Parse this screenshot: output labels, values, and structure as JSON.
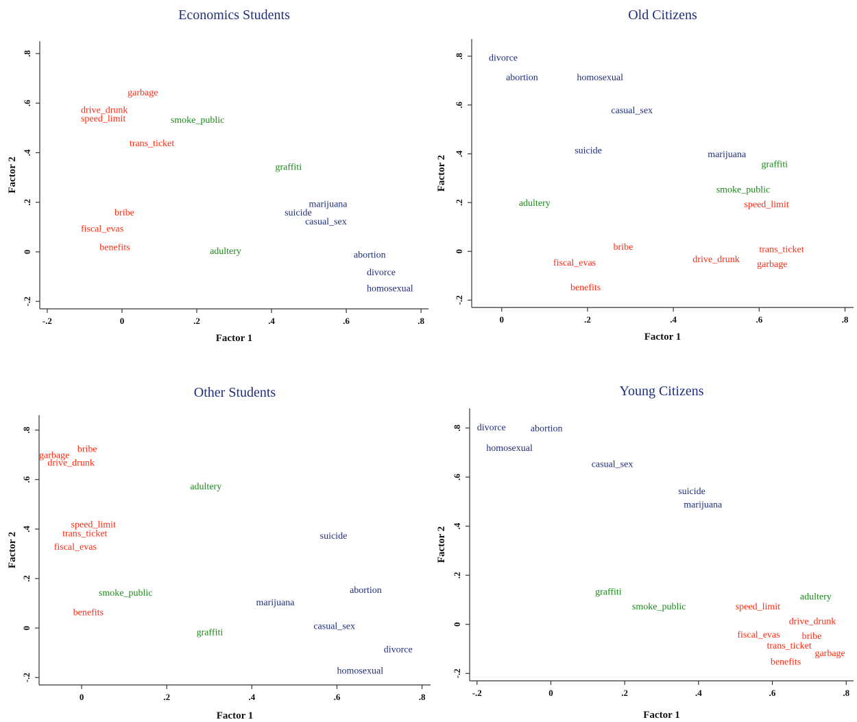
{
  "colors": {
    "red": "#ff2a12",
    "green": "#1a8a1a",
    "blue": "#1f2f7a"
  },
  "chart_data": [
    {
      "type": "scatter",
      "title": "Economics Students",
      "xlabel": "Factor 1",
      "ylabel": "Factor 2",
      "xlim": [
        -0.22,
        0.82
      ],
      "ylim": [
        -0.23,
        0.85
      ],
      "xticks": [
        -0.2,
        0,
        0.2,
        0.4,
        0.6,
        0.8
      ],
      "yticks": [
        -0.2,
        0,
        0.2,
        0.4,
        0.6,
        0.8
      ],
      "xtick_labels": [
        "-.2",
        "0",
        ".2",
        ".4",
        ".6",
        ".8"
      ],
      "ytick_labels": [
        "-.2",
        "0",
        ".2",
        ".4",
        ".6",
        ".8"
      ],
      "points": [
        {
          "label": "garbage",
          "x": 0.015,
          "y": 0.645,
          "color": "red"
        },
        {
          "label": "drive_drunk",
          "x": -0.11,
          "y": 0.575,
          "color": "red"
        },
        {
          "label": "speed_limit",
          "x": -0.11,
          "y": 0.54,
          "color": "red"
        },
        {
          "label": "smoke_public",
          "x": 0.13,
          "y": 0.535,
          "color": "green"
        },
        {
          "label": "trans_ticket",
          "x": 0.02,
          "y": 0.44,
          "color": "red"
        },
        {
          "label": "graffiti",
          "x": 0.41,
          "y": 0.345,
          "color": "green"
        },
        {
          "label": "marijuana",
          "x": 0.5,
          "y": 0.195,
          "color": "blue"
        },
        {
          "label": "bribe",
          "x": -0.02,
          "y": 0.16,
          "color": "red"
        },
        {
          "label": "suicide",
          "x": 0.435,
          "y": 0.16,
          "color": "blue"
        },
        {
          "label": "casual_sex",
          "x": 0.49,
          "y": 0.125,
          "color": "blue"
        },
        {
          "label": "fiscal_evas",
          "x": -0.11,
          "y": 0.095,
          "color": "red"
        },
        {
          "label": "benefits",
          "x": -0.06,
          "y": 0.02,
          "color": "red"
        },
        {
          "label": "adultery",
          "x": 0.235,
          "y": 0.005,
          "color": "green"
        },
        {
          "label": "abortion",
          "x": 0.62,
          "y": -0.01,
          "color": "blue"
        },
        {
          "label": "divorce",
          "x": 0.655,
          "y": -0.08,
          "color": "blue"
        },
        {
          "label": "homosexual",
          "x": 0.655,
          "y": -0.145,
          "color": "blue"
        }
      ]
    },
    {
      "type": "scatter",
      "title": "Old Citizens",
      "xlabel": "Factor 1",
      "ylabel": "Factor 2",
      "xlim": [
        -0.07,
        0.82
      ],
      "ylim": [
        -0.23,
        0.87
      ],
      "xticks": [
        0,
        0.2,
        0.4,
        0.6,
        0.8
      ],
      "yticks": [
        -0.2,
        0,
        0.2,
        0.4,
        0.6,
        0.8
      ],
      "xtick_labels": [
        "0",
        ".2",
        ".4",
        ".6",
        ".8"
      ],
      "ytick_labels": [
        "-.2",
        "0",
        ".2",
        ".4",
        ".6",
        ".8"
      ],
      "points": [
        {
          "label": "divorce",
          "x": -0.03,
          "y": 0.795,
          "color": "blue"
        },
        {
          "label": "abortion",
          "x": 0.01,
          "y": 0.715,
          "color": "blue"
        },
        {
          "label": "homosexual",
          "x": 0.175,
          "y": 0.715,
          "color": "blue"
        },
        {
          "label": "casual_sex",
          "x": 0.255,
          "y": 0.58,
          "color": "blue"
        },
        {
          "label": "suicide",
          "x": 0.17,
          "y": 0.415,
          "color": "blue"
        },
        {
          "label": "marijuana",
          "x": 0.48,
          "y": 0.4,
          "color": "blue"
        },
        {
          "label": "graffiti",
          "x": 0.605,
          "y": 0.36,
          "color": "green"
        },
        {
          "label": "smoke_public",
          "x": 0.5,
          "y": 0.255,
          "color": "green"
        },
        {
          "label": "adultery",
          "x": 0.04,
          "y": 0.2,
          "color": "green"
        },
        {
          "label": "speed_limit",
          "x": 0.565,
          "y": 0.195,
          "color": "red"
        },
        {
          "label": "bribe",
          "x": 0.26,
          "y": 0.02,
          "color": "red"
        },
        {
          "label": "trans_ticket",
          "x": 0.6,
          "y": 0.01,
          "color": "red"
        },
        {
          "label": "drive_drunk",
          "x": 0.445,
          "y": -0.03,
          "color": "red"
        },
        {
          "label": "fiscal_evas",
          "x": 0.12,
          "y": -0.045,
          "color": "red"
        },
        {
          "label": "garbage",
          "x": 0.595,
          "y": -0.05,
          "color": "red"
        },
        {
          "label": "benefits",
          "x": 0.16,
          "y": -0.145,
          "color": "red"
        }
      ]
    },
    {
      "type": "scatter",
      "title": "Other Students",
      "xlabel": "Factor 1",
      "ylabel": "Factor 2",
      "xlim": [
        -0.1,
        0.82
      ],
      "ylim": [
        -0.23,
        0.86
      ],
      "xticks": [
        0,
        0.2,
        0.4,
        0.6,
        0.8
      ],
      "yticks": [
        -0.2,
        0,
        0.2,
        0.4,
        0.6,
        0.8
      ],
      "xtick_labels": [
        "0",
        ".2",
        ".4",
        ".6",
        ".8"
      ],
      "ytick_labels": [
        "-.2",
        "0",
        ".2",
        ".4",
        ".6",
        ".8"
      ],
      "points": [
        {
          "label": "garbage",
          "x": -0.1,
          "y": 0.7,
          "color": "red"
        },
        {
          "label": "bribe",
          "x": -0.01,
          "y": 0.725,
          "color": "red"
        },
        {
          "label": "drive_drunk",
          "x": -0.08,
          "y": 0.67,
          "color": "red"
        },
        {
          "label": "adultery",
          "x": 0.255,
          "y": 0.575,
          "color": "green"
        },
        {
          "label": "speed_limit",
          "x": -0.025,
          "y": 0.42,
          "color": "red"
        },
        {
          "label": "trans_ticket",
          "x": -0.045,
          "y": 0.385,
          "color": "red"
        },
        {
          "label": "suicide",
          "x": 0.56,
          "y": 0.375,
          "color": "blue"
        },
        {
          "label": "fiscal_evas",
          "x": -0.065,
          "y": 0.33,
          "color": "red"
        },
        {
          "label": "abortion",
          "x": 0.63,
          "y": 0.155,
          "color": "blue"
        },
        {
          "label": "smoke_public",
          "x": 0.04,
          "y": 0.145,
          "color": "green"
        },
        {
          "label": "marijuana",
          "x": 0.41,
          "y": 0.105,
          "color": "blue"
        },
        {
          "label": "benefits",
          "x": -0.02,
          "y": 0.065,
          "color": "red"
        },
        {
          "label": "casual_sex",
          "x": 0.545,
          "y": 0.01,
          "color": "blue"
        },
        {
          "label": "graffiti",
          "x": 0.27,
          "y": -0.015,
          "color": "green"
        },
        {
          "label": "divorce",
          "x": 0.71,
          "y": -0.085,
          "color": "blue"
        },
        {
          "label": "homosexual",
          "x": 0.6,
          "y": -0.17,
          "color": "blue"
        }
      ]
    },
    {
      "type": "scatter",
      "title": "Young Citizens",
      "xlabel": "Factor 1",
      "ylabel": "Factor 2",
      "xlim": [
        -0.22,
        0.82
      ],
      "ylim": [
        -0.23,
        0.88
      ],
      "xticks": [
        -0.2,
        0,
        0.2,
        0.4,
        0.6,
        0.8
      ],
      "yticks": [
        -0.2,
        0,
        0.2,
        0.4,
        0.6,
        0.8
      ],
      "xtick_labels": [
        "-.2",
        "0",
        ".2",
        ".4",
        ".6",
        ".8"
      ],
      "ytick_labels": [
        "-.2",
        "0",
        ".2",
        ".4",
        ".6",
        ".8"
      ],
      "points": [
        {
          "label": "divorce",
          "x": -0.2,
          "y": 0.805,
          "color": "blue"
        },
        {
          "label": "abortion",
          "x": -0.055,
          "y": 0.8,
          "color": "blue"
        },
        {
          "label": "homosexual",
          "x": -0.175,
          "y": 0.72,
          "color": "blue"
        },
        {
          "label": "casual_sex",
          "x": 0.11,
          "y": 0.655,
          "color": "blue"
        },
        {
          "label": "suicide",
          "x": 0.345,
          "y": 0.545,
          "color": "blue"
        },
        {
          "label": "marijuana",
          "x": 0.36,
          "y": 0.49,
          "color": "blue"
        },
        {
          "label": "graffiti",
          "x": 0.12,
          "y": 0.135,
          "color": "green"
        },
        {
          "label": "adultery",
          "x": 0.675,
          "y": 0.115,
          "color": "green"
        },
        {
          "label": "smoke_public",
          "x": 0.22,
          "y": 0.075,
          "color": "green"
        },
        {
          "label": "speed_limit",
          "x": 0.5,
          "y": 0.075,
          "color": "red"
        },
        {
          "label": "drive_drunk",
          "x": 0.645,
          "y": 0.015,
          "color": "red"
        },
        {
          "label": "fiscal_evas",
          "x": 0.505,
          "y": -0.04,
          "color": "red"
        },
        {
          "label": "bribe",
          "x": 0.68,
          "y": -0.045,
          "color": "red"
        },
        {
          "label": "trans_ticket",
          "x": 0.585,
          "y": -0.085,
          "color": "red"
        },
        {
          "label": "garbage",
          "x": 0.715,
          "y": -0.115,
          "color": "red"
        },
        {
          "label": "benefits",
          "x": 0.595,
          "y": -0.15,
          "color": "red"
        }
      ]
    }
  ]
}
